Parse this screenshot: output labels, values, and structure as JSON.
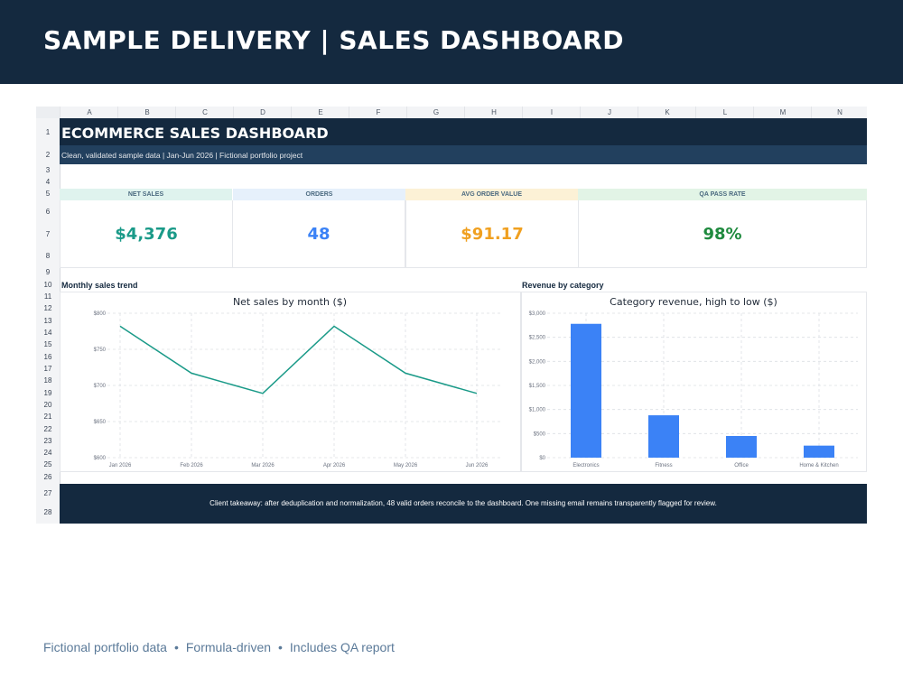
{
  "banner": {
    "title": "SAMPLE DELIVERY | SALES DASHBOARD"
  },
  "sheet": {
    "columns": [
      "A",
      "B",
      "C",
      "D",
      "E",
      "F",
      "G",
      "H",
      "I",
      "J",
      "K",
      "L",
      "M",
      "N"
    ],
    "rows": [
      "1",
      "2",
      "3",
      "4",
      "5",
      "6",
      "7",
      "8",
      "9",
      "10",
      "11",
      "12",
      "13",
      "14",
      "15",
      "16",
      "17",
      "18",
      "19",
      "20",
      "21",
      "22",
      "23",
      "24",
      "25",
      "26",
      "27",
      "28"
    ],
    "title": "ECOMMERCE SALES DASHBOARD",
    "subtitle": "Clean, validated sample data | Jan-Jun 2026 | Fictional portfolio project"
  },
  "kpis": [
    {
      "label": "NET SALES",
      "value": "$4,376",
      "color": "#1a9a88",
      "head_bg": "#dff3ee"
    },
    {
      "label": "ORDERS",
      "value": "48",
      "color": "#3b82f6",
      "head_bg": "#e6f0fb"
    },
    {
      "label": "AVG ORDER VALUE",
      "value": "$91.17",
      "color": "#f0a020",
      "head_bg": "#fcf1d6"
    },
    {
      "label": "QA PASS RATE",
      "value": "98%",
      "color": "#1f8a3e",
      "head_bg": "#e2f4e6"
    }
  ],
  "charts": {
    "trend_label": "Monthly sales trend",
    "category_label": "Revenue by category"
  },
  "chart_data": [
    {
      "type": "line",
      "title": "Net sales by month ($)",
      "categories": [
        "Jan 2026",
        "Feb 2026",
        "Mar 2026",
        "Apr 2026",
        "May 2026",
        "Jun 2026"
      ],
      "series": [
        {
          "values": [
            782,
            717,
            689,
            782,
            717,
            689
          ]
        }
      ],
      "ylim": [
        600,
        800
      ],
      "yticks": [
        "$600",
        "$650",
        "$700",
        "$750",
        "$800"
      ],
      "ytick_values": [
        600,
        650,
        700,
        750,
        800
      ],
      "color": "#1a9a88",
      "grid": true
    },
    {
      "type": "bar",
      "title": "Category revenue, high to low ($)",
      "categories": [
        "Electronics",
        "Fitness",
        "Office",
        "Home & Kitchen"
      ],
      "values": [
        2780,
        880,
        450,
        250
      ],
      "ylim": [
        0,
        3000
      ],
      "yticks": [
        "$0",
        "$500",
        "$1,000",
        "$1,500",
        "$2,000",
        "$2,500",
        "$3,000"
      ],
      "ytick_values": [
        0,
        500,
        1000,
        1500,
        2000,
        2500,
        3000
      ],
      "color": "#3b82f6",
      "grid": true
    }
  ],
  "footer": {
    "takeaway": "Client takeaway: after deduplication and normalization, 48 valid orders reconcile to the dashboard. One missing email remains transparently flagged for review."
  },
  "caption": {
    "items": [
      "Fictional portfolio data",
      "Formula-driven",
      "Includes QA report"
    ],
    "separator": "•"
  }
}
